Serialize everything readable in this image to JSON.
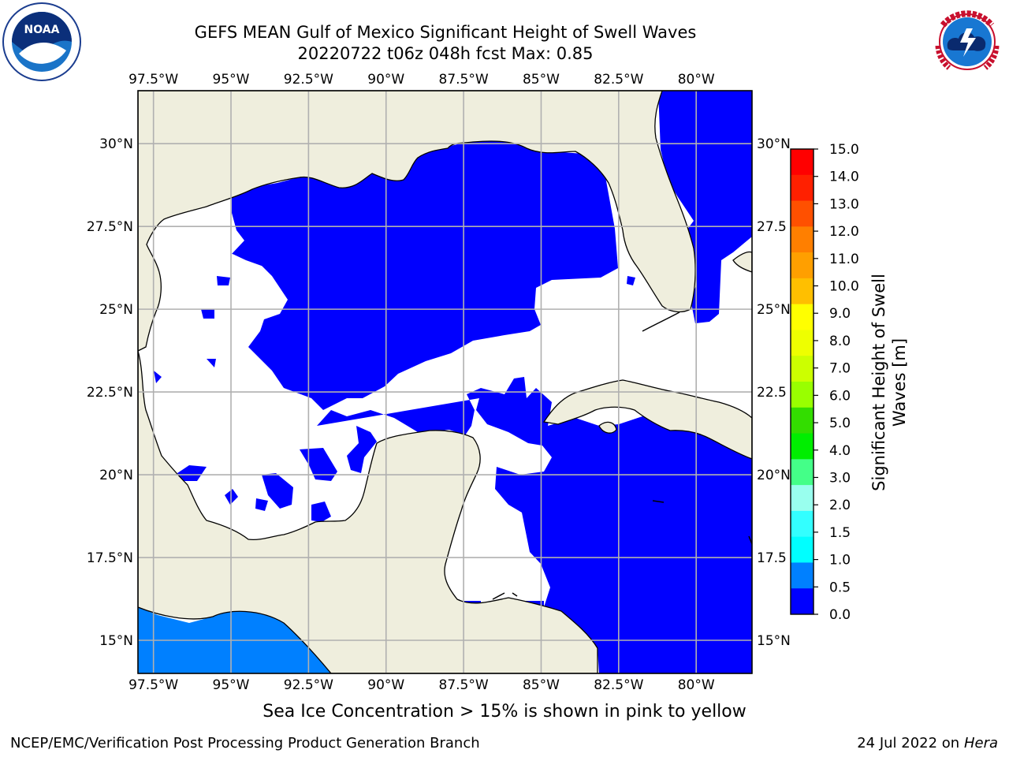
{
  "title": {
    "line1": "GEFS MEAN Gulf of Mexico Significant Height of Swell Waves",
    "line2": "20220722 t06z 048h fcst   Max: 0.85"
  },
  "logos": {
    "left": {
      "icon": "noaa-logo",
      "text": "NOAA",
      "ring_text": "NATIONAL OCEANIC AND ATMOSPHERIC ADMINISTRATION · U.S. DEPARTMENT OF COMMERCE"
    },
    "right": {
      "icon": "nws-logo",
      "ring_text": "NATIONAL WEATHER SERVICE"
    }
  },
  "map": {
    "lon_ticks": [
      "97.5°W",
      "95°W",
      "92.5°W",
      "90°W",
      "87.5°W",
      "85°W",
      "82.5°W",
      "80°W"
    ],
    "lon_values": [
      -97.5,
      -95,
      -92.5,
      -90,
      -87.5,
      -85,
      -82.5,
      -80
    ],
    "lat_ticks_left": [
      "30°N",
      "27.5°N",
      "25°N",
      "22.5°N",
      "20°N",
      "17.5°N",
      "15°N"
    ],
    "lat_ticks_right": [
      "30°N",
      "27.5",
      "25°N",
      "22.5",
      "20°N",
      "17.5",
      "15°N"
    ],
    "lat_values": [
      30,
      27.5,
      25,
      22.5,
      20,
      17.5,
      15
    ],
    "lon_range": [
      -98,
      -78.2
    ],
    "lat_range": [
      14,
      31.6
    ],
    "colors": {
      "land": "#efeedd",
      "sea": "#ffffff",
      "swell_0": "#0000ff",
      "swell_05": "#0080ff",
      "grid": "#b0b0b0",
      "frame": "#000000"
    }
  },
  "colorbar": {
    "title_line1": "Significant Height of Swell",
    "title_line2": "Waves [m]",
    "labels": [
      "15.0",
      "14.0",
      "13.0",
      "12.0",
      "11.0",
      "10.0",
      "9.0",
      "8.0",
      "7.0",
      "6.0",
      "5.0",
      "4.0",
      "3.0",
      "2.0",
      "1.5",
      "1.0",
      "0.5",
      "0.0"
    ],
    "colors": [
      "#ff0000",
      "#ff2000",
      "#ff5000",
      "#ff7f00",
      "#ff9f00",
      "#ffbf00",
      "#ffff00",
      "#eeff00",
      "#ccff00",
      "#99ff00",
      "#33dd00",
      "#00ee00",
      "#44ff88",
      "#99ffee",
      "#33ffff",
      "#00ffff",
      "#0080ff",
      "#0000ff"
    ]
  },
  "ice_note": "Sea Ice Concentration > 15% is shown in pink to yellow",
  "footer": {
    "left": "NCEP/EMC/Verification Post Processing Product Generation Branch",
    "right_date": "24 Jul 2022 on ",
    "right_host": "Hera"
  }
}
